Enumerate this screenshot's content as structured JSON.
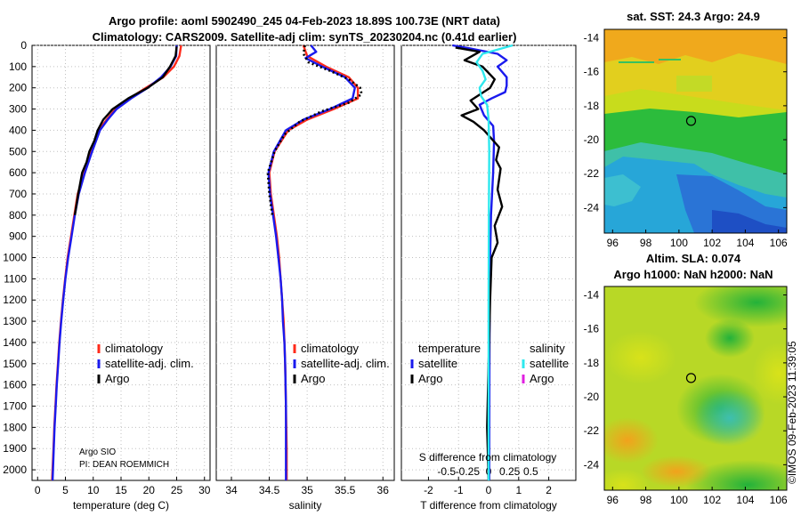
{
  "header": {
    "line1": "Argo profile: aoml 5902490_245 04-Feb-2023 18.89S 100.73E (NRT data)",
    "line2": "Climatology: CARS2009. Satellite-adj clim: synTS_20230204.nc (0.41d earlier)"
  },
  "credit": {
    "institution": "Argo SIO",
    "pi": "PI: DEAN ROEMMICH",
    "stamp": "©IMOS 09-Feb-2023 11:39:05"
  },
  "colors": {
    "climatology": "#ff2a1a",
    "satellite_adj": "#1a1aee",
    "argo": "#000000",
    "sat_salinity": "#2ee8ee",
    "argo_salinity": "#e020e0"
  },
  "chart_data": [
    {
      "type": "line",
      "name": "temperature",
      "xlabel": "temperature (deg C)",
      "ylabel": "depth",
      "xlim": [
        -1,
        31
      ],
      "ylim": [
        2050,
        0
      ],
      "xticks": [
        0,
        5,
        10,
        15,
        20,
        25,
        30
      ],
      "yticks": [
        0,
        100,
        200,
        300,
        400,
        500,
        600,
        700,
        800,
        900,
        1000,
        1100,
        1200,
        1300,
        1400,
        1500,
        1600,
        1700,
        1800,
        1900,
        2000
      ],
      "legend": [
        "climatology",
        "satellite-adj. clim.",
        "Argo"
      ],
      "series": [
        {
          "name": "climatology",
          "color": "#ff2a1a",
          "points": [
            [
              25.8,
              0
            ],
            [
              25.5,
              50
            ],
            [
              24.5,
              100
            ],
            [
              22.6,
              150
            ],
            [
              19.5,
              200
            ],
            [
              16.5,
              250
            ],
            [
              14.0,
              300
            ],
            [
              12.4,
              350
            ],
            [
              11.0,
              400
            ],
            [
              9.6,
              500
            ],
            [
              8.4,
              600
            ],
            [
              7.2,
              700
            ],
            [
              6.6,
              800
            ],
            [
              6.0,
              900
            ],
            [
              5.4,
              1000
            ],
            [
              4.95,
              1100
            ],
            [
              4.55,
              1200
            ],
            [
              4.2,
              1300
            ],
            [
              3.9,
              1400
            ],
            [
              3.65,
              1500
            ],
            [
              3.4,
              1600
            ],
            [
              3.2,
              1700
            ],
            [
              3.0,
              1800
            ],
            [
              2.85,
              1900
            ],
            [
              2.6,
              2050
            ]
          ]
        },
        {
          "name": "satellite-adj. clim.",
          "color": "#1a1aee",
          "points": [
            [
              25.0,
              0
            ],
            [
              24.9,
              50
            ],
            [
              23.9,
              100
            ],
            [
              22.2,
              150
            ],
            [
              19.8,
              200
            ],
            [
              16.8,
              250
            ],
            [
              14.2,
              300
            ],
            [
              12.6,
              350
            ],
            [
              11.2,
              400
            ],
            [
              9.8,
              500
            ],
            [
              8.5,
              600
            ],
            [
              7.4,
              700
            ],
            [
              6.7,
              800
            ],
            [
              6.1,
              900
            ],
            [
              5.5,
              1000
            ],
            [
              5.0,
              1100
            ],
            [
              4.6,
              1200
            ],
            [
              4.25,
              1300
            ],
            [
              3.95,
              1400
            ],
            [
              3.7,
              1500
            ],
            [
              3.45,
              1600
            ],
            [
              3.25,
              1700
            ],
            [
              3.05,
              1800
            ],
            [
              2.9,
              1900
            ],
            [
              2.7,
              2050
            ]
          ]
        },
        {
          "name": "Argo",
          "color": "#000000",
          "points": [
            [
              25.0,
              5
            ],
            [
              24.8,
              50
            ],
            [
              23.8,
              100
            ],
            [
              22.5,
              150
            ],
            [
              19.8,
              200
            ],
            [
              16.3,
              250
            ],
            [
              13.5,
              300
            ],
            [
              12.5,
              330
            ],
            [
              11.8,
              350
            ],
            [
              10.8,
              400
            ],
            [
              10.2,
              450
            ],
            [
              9.3,
              500
            ],
            [
              8.8,
              550
            ],
            [
              8.0,
              600
            ],
            [
              7.3,
              700
            ],
            [
              6.7,
              800
            ]
          ]
        }
      ]
    },
    {
      "type": "line",
      "name": "salinity",
      "xlabel": "salinity",
      "xlim": [
        33.8,
        36.15
      ],
      "ylim": [
        2050,
        0
      ],
      "xticks": [
        34,
        34.5,
        35,
        35.5,
        36
      ],
      "legend": [
        "climatology",
        "satellite-adj. clim.",
        "Argo"
      ],
      "series": [
        {
          "name": "climatology",
          "color": "#ff2a1a",
          "points": [
            [
              34.95,
              0
            ],
            [
              35.0,
              50
            ],
            [
              35.25,
              100
            ],
            [
              35.55,
              150
            ],
            [
              35.67,
              200
            ],
            [
              35.67,
              250
            ],
            [
              35.35,
              300
            ],
            [
              35.0,
              350
            ],
            [
              34.75,
              400
            ],
            [
              34.57,
              500
            ],
            [
              34.5,
              600
            ],
            [
              34.52,
              700
            ],
            [
              34.56,
              800
            ],
            [
              34.6,
              900
            ],
            [
              34.63,
              1000
            ],
            [
              34.65,
              1100
            ],
            [
              34.67,
              1200
            ],
            [
              34.69,
              1300
            ],
            [
              34.7,
              1400
            ],
            [
              34.71,
              1500
            ],
            [
              34.72,
              1700
            ],
            [
              34.73,
              1900
            ],
            [
              34.73,
              2050
            ]
          ]
        },
        {
          "name": "satellite-adj. clim.",
          "color": "#1a1aee",
          "points": [
            [
              35.05,
              0
            ],
            [
              35.12,
              30
            ],
            [
              34.98,
              60
            ],
            [
              35.2,
              100
            ],
            [
              35.5,
              150
            ],
            [
              35.63,
              200
            ],
            [
              35.6,
              250
            ],
            [
              35.3,
              300
            ],
            [
              34.95,
              350
            ],
            [
              34.72,
              400
            ],
            [
              34.56,
              500
            ],
            [
              34.49,
              600
            ],
            [
              34.51,
              700
            ],
            [
              34.55,
              800
            ],
            [
              34.59,
              900
            ],
            [
              34.62,
              1000
            ],
            [
              34.65,
              1100
            ],
            [
              34.67,
              1200
            ],
            [
              34.68,
              1300
            ],
            [
              34.7,
              1400
            ],
            [
              34.71,
              1500
            ],
            [
              34.72,
              1700
            ],
            [
              34.72,
              1900
            ],
            [
              34.72,
              2050
            ]
          ]
        },
        {
          "name": "Argo",
          "color": "#000000",
          "points": [
            [
              34.97,
              0
            ],
            [
              34.95,
              40
            ],
            [
              35.02,
              80
            ],
            [
              35.3,
              120
            ],
            [
              35.55,
              160
            ],
            [
              35.7,
              200
            ],
            [
              35.72,
              230
            ],
            [
              35.55,
              270
            ],
            [
              35.2,
              310
            ],
            [
              34.9,
              360
            ],
            [
              34.7,
              420
            ],
            [
              34.57,
              500
            ],
            [
              34.48,
              600
            ],
            [
              34.5,
              700
            ],
            [
              34.54,
              800
            ]
          ]
        }
      ]
    },
    {
      "type": "line",
      "name": "difference-from-climatology",
      "xlabel": "T difference from climatology",
      "x2label": "S difference from climatology",
      "xlim": [
        -2.9,
        2.9
      ],
      "ylim": [
        2050,
        0
      ],
      "xticks": [
        -2,
        -1,
        0,
        1,
        2
      ],
      "x2ticks": [
        "-0.5",
        "-0.25",
        "0",
        "0.25",
        "0.5"
      ],
      "legend_groups": [
        "temperature",
        "salinity"
      ],
      "legend": [
        "satellite",
        "Argo",
        "satellite",
        "Argo"
      ],
      "series": [
        {
          "name": "temperature satellite",
          "color": "#1a1aee",
          "points": [
            [
              -1.2,
              0
            ],
            [
              -0.6,
              15
            ],
            [
              0.3,
              40
            ],
            [
              0.6,
              70
            ],
            [
              0.3,
              100
            ],
            [
              0.6,
              150
            ],
            [
              0.6,
              190
            ],
            [
              0.55,
              220
            ],
            [
              0.1,
              250
            ],
            [
              -0.3,
              280
            ],
            [
              -0.15,
              330
            ],
            [
              0.15,
              380
            ],
            [
              0.18,
              450
            ],
            [
              0.15,
              600
            ],
            [
              0.08,
              800
            ],
            [
              0.05,
              1000
            ],
            [
              0.03,
              1400
            ],
            [
              0.02,
              2050
            ]
          ]
        },
        {
          "name": "temperature Argo",
          "color": "#000000",
          "points": [
            [
              -1.1,
              10
            ],
            [
              -0.3,
              30
            ],
            [
              -0.8,
              70
            ],
            [
              -0.2,
              100
            ],
            [
              0.0,
              130
            ],
            [
              0.2,
              160
            ],
            [
              0.05,
              200
            ],
            [
              -0.6,
              260
            ],
            [
              -0.35,
              300
            ],
            [
              -0.9,
              330
            ],
            [
              -0.5,
              360
            ],
            [
              -0.15,
              400
            ],
            [
              0.35,
              480
            ],
            [
              0.25,
              540
            ],
            [
              0.4,
              580
            ],
            [
              0.3,
              680
            ],
            [
              0.45,
              760
            ],
            [
              0.2,
              850
            ],
            [
              0.3,
              930
            ],
            [
              0.1,
              1000
            ],
            [
              0.05,
              1200
            ],
            [
              0.0,
              1500
            ],
            [
              -0.05,
              1800
            ],
            [
              0.0,
              2050
            ]
          ]
        },
        {
          "name": "salinity satellite",
          "color": "#2ee8ee",
          "points": [
            [
              0.8,
              0
            ],
            [
              -0.2,
              40
            ],
            [
              -0.4,
              80
            ],
            [
              -0.2,
              120
            ],
            [
              -0.1,
              160
            ],
            [
              -0.3,
              200
            ],
            [
              -0.25,
              240
            ],
            [
              -0.05,
              280
            ],
            [
              0.0,
              350
            ],
            [
              0.02,
              500
            ],
            [
              0.01,
              800
            ],
            [
              0.0,
              1200
            ],
            [
              0.0,
              2050
            ]
          ]
        },
        {
          "name": "salinity Argo",
          "color": "#e020e0",
          "points": []
        }
      ]
    },
    {
      "type": "heatmap",
      "name": "sat-sst-map",
      "title": "sat. SST: 24.3 Argo: 24.9",
      "xticks": [
        96,
        98,
        100,
        102,
        104,
        106
      ],
      "yticks": [
        -14,
        -16,
        -18,
        -20,
        -22,
        -24
      ],
      "xlim": [
        95.5,
        106.5
      ],
      "ylim": [
        -25.5,
        -13.5
      ],
      "marker": [
        100.73,
        -18.89
      ]
    },
    {
      "type": "heatmap",
      "name": "altim-sla-map",
      "title": "Altim. SLA: 0.074",
      "subtitle": "Argo h1000: NaN h2000: NaN",
      "xticks": [
        96,
        98,
        100,
        102,
        104,
        106
      ],
      "yticks": [
        -14,
        -16,
        -18,
        -20,
        -22,
        -24
      ],
      "xlim": [
        95.5,
        106.5
      ],
      "ylim": [
        -25.5,
        -13.5
      ],
      "marker": [
        100.73,
        -18.89
      ]
    }
  ]
}
